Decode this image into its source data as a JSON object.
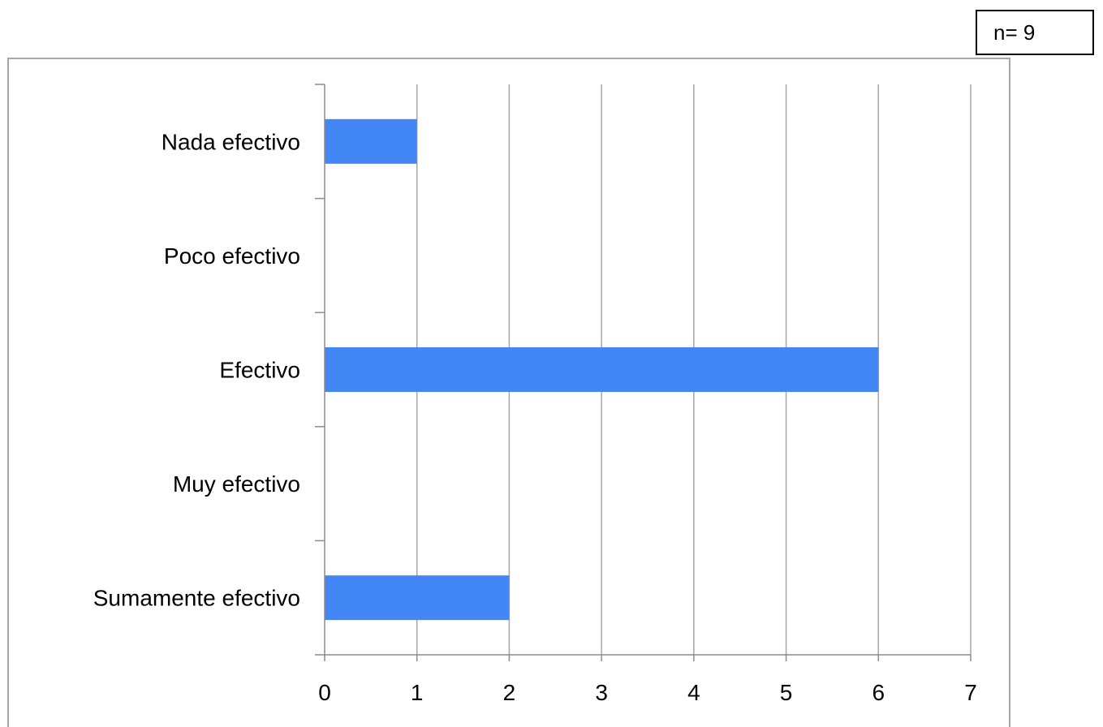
{
  "annotation": {
    "n_label": "n= 9"
  },
  "chart_data": {
    "type": "bar",
    "orientation": "horizontal",
    "categories": [
      "Nada efectivo",
      "Poco efectivo",
      "Efectivo",
      "Muy efectivo",
      "Sumamente efectivo"
    ],
    "values": [
      1,
      0,
      6,
      0,
      2
    ],
    "title": "",
    "xlabel": "",
    "ylabel": "",
    "xlim": [
      0,
      7
    ],
    "xticks": [
      "0",
      "1",
      "2",
      "3",
      "4",
      "5",
      "6",
      "7"
    ],
    "grid": "vertical",
    "legend": "none",
    "colors": {
      "bar": "#4287f5",
      "grid": "#a6a6a6",
      "axis": "#8c8c8c",
      "frame": "#a6a6a6"
    }
  }
}
